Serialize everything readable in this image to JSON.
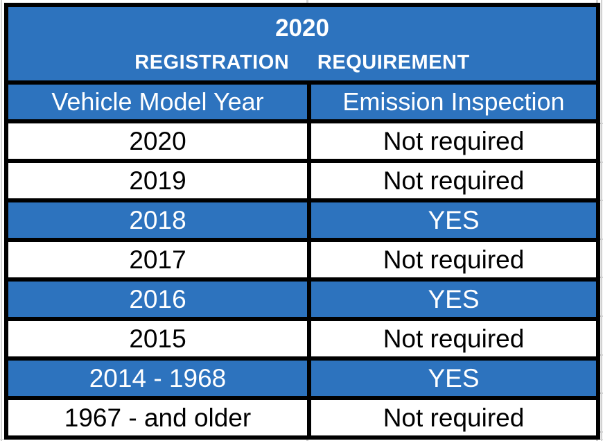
{
  "title": {
    "line1": "2020",
    "line2": "REGISTRATION   REQUIREMENT"
  },
  "columns": [
    {
      "label": "Vehicle Model Year"
    },
    {
      "label": "Emission Inspection"
    }
  ],
  "rows": [
    {
      "year": "2020",
      "inspection": "Not required",
      "highlight": false
    },
    {
      "year": "2019",
      "inspection": "Not required",
      "highlight": false
    },
    {
      "year": "2018",
      "inspection": "YES",
      "highlight": true
    },
    {
      "year": "2017",
      "inspection": "Not required",
      "highlight": false
    },
    {
      "year": "2016",
      "inspection": "YES",
      "highlight": true
    },
    {
      "year": "2015",
      "inspection": "Not required",
      "highlight": false
    },
    {
      "year": "2014 - 1968",
      "inspection": "YES",
      "highlight": true
    },
    {
      "year": "1967 - and older",
      "inspection": "Not required",
      "highlight": false
    }
  ],
  "colors": {
    "header_blue": "#2d73be",
    "border_black": "#000000",
    "text_white": "#ffffff",
    "text_black": "#000000",
    "gridline_gray": "#d2d2d2"
  }
}
